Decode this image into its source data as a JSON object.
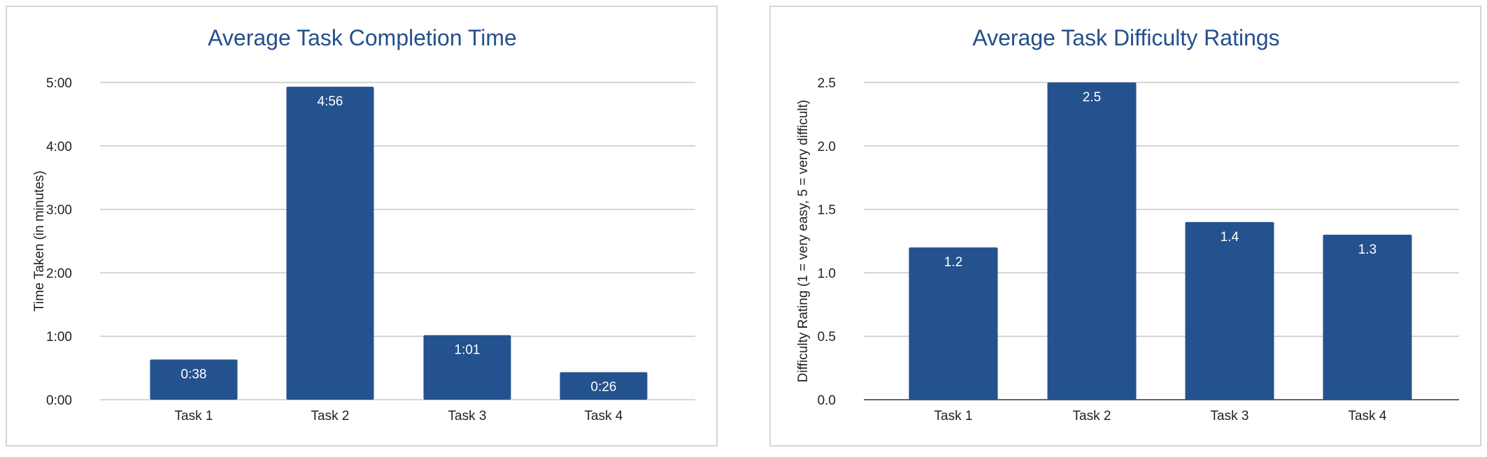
{
  "colors": {
    "bar": "#24528f",
    "title": "#244f8c",
    "grid": "#c8c8c8"
  },
  "chart_data": [
    {
      "type": "bar",
      "title": "Average Task Completion Time",
      "xlabel": "",
      "ylabel": "Time Taken (in minutes)",
      "categories": [
        "Task 1",
        "Task 2",
        "Task 3",
        "Task 4"
      ],
      "values": [
        0.633,
        4.933,
        1.017,
        0.433
      ],
      "data_labels": [
        "0:38",
        "4:56",
        "1:01",
        "0:26"
      ],
      "ylim": [
        0,
        5
      ],
      "yticks": [
        0,
        1,
        2,
        3,
        4,
        5
      ],
      "ytick_labels": [
        "0:00",
        "1:00",
        "2:00",
        "3:00",
        "4:00",
        "5:00"
      ],
      "grid": true,
      "legend": "none"
    },
    {
      "type": "bar",
      "title": "Average Task Difficulty Ratings",
      "xlabel": "",
      "ylabel": "Difficulty Rating (1 = very easy, 5 = very difficult)",
      "categories": [
        "Task 1",
        "Task 2",
        "Task 3",
        "Task 4"
      ],
      "values": [
        1.2,
        2.5,
        1.4,
        1.3
      ],
      "data_labels": [
        "1.2",
        "2.5",
        "1.4",
        "1.3"
      ],
      "ylim": [
        0,
        2.5
      ],
      "yticks": [
        0,
        0.5,
        1,
        1.5,
        2,
        2.5
      ],
      "ytick_labels": [
        "0.0",
        "0.5",
        "1.0",
        "1.5",
        "2.0",
        "2.5"
      ],
      "grid": true,
      "legend": "none"
    }
  ]
}
